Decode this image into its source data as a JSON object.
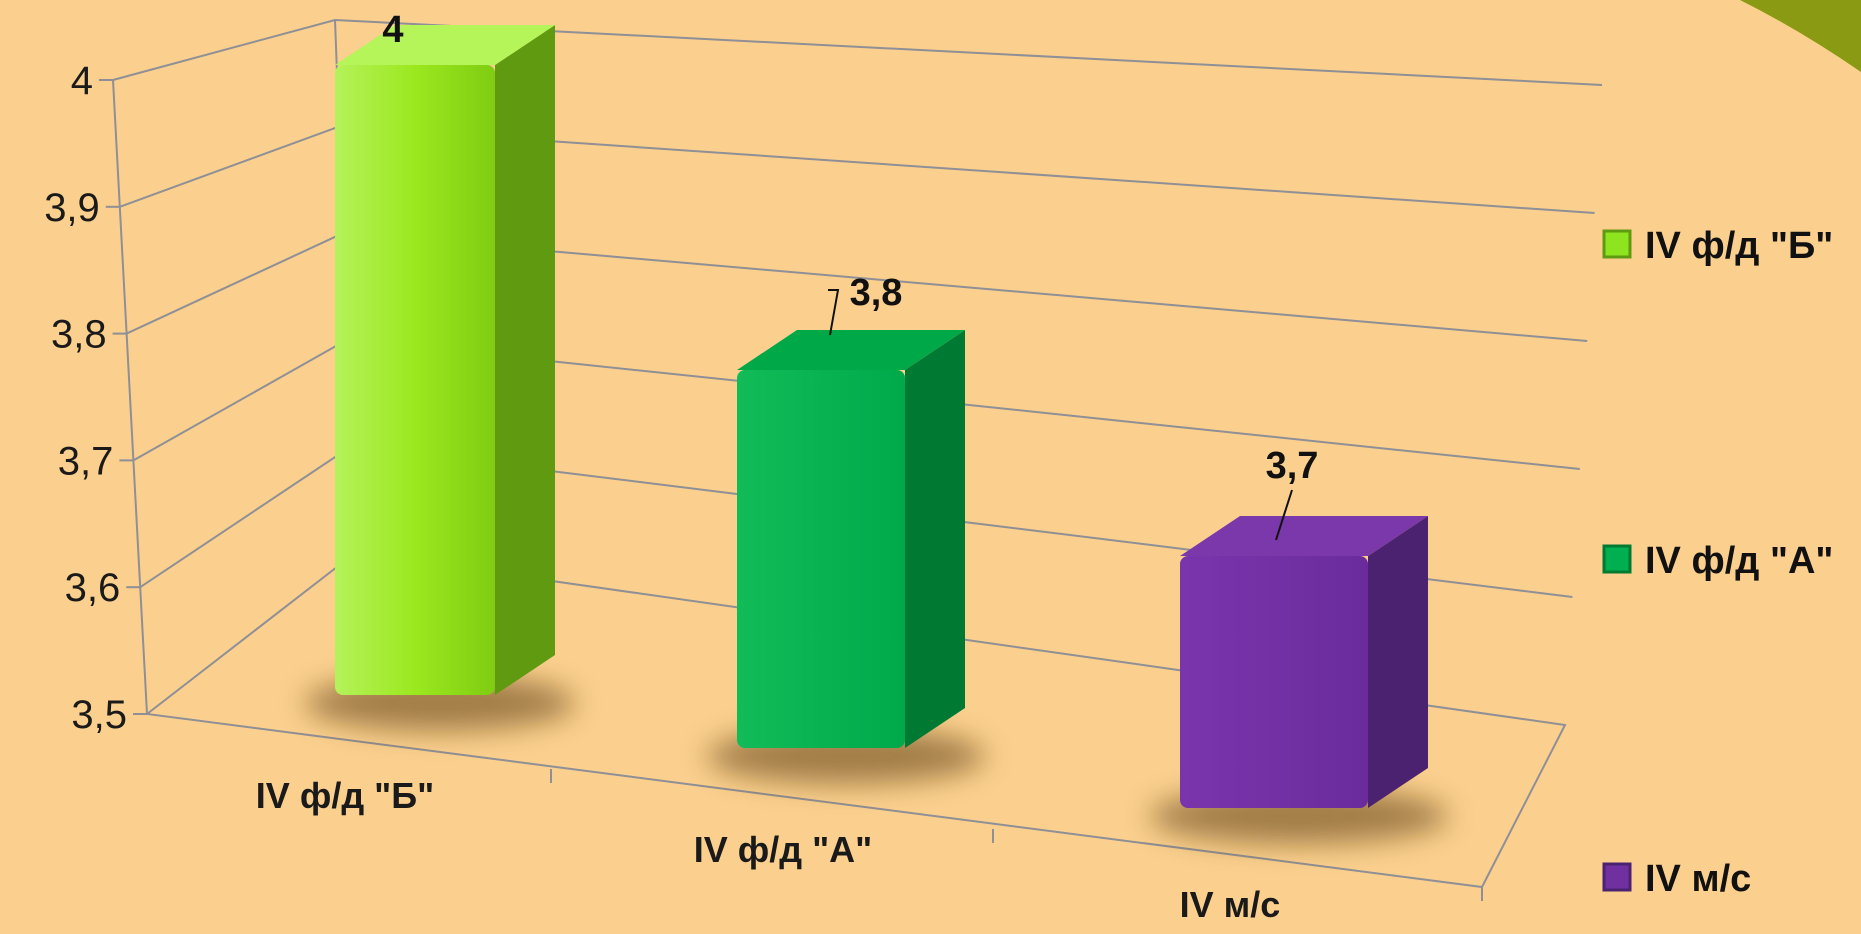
{
  "chart_data": {
    "type": "bar",
    "title": "",
    "xlabel": "",
    "ylabel": "",
    "categories": [
      "IV ф/д \"Б\"",
      "IV ф/д \"А\"",
      "IV м/с"
    ],
    "values": [
      4,
      3.8,
      3.7
    ],
    "data_labels": [
      "4",
      "3,8",
      "3,7"
    ],
    "ylim": [
      3.5,
      4.0
    ],
    "yticks": [
      3.5,
      3.6,
      3.7,
      3.8,
      3.9,
      4.0
    ],
    "ytick_labels": [
      "3,5",
      "3,6",
      "3,7",
      "3,8",
      "3,9",
      "4"
    ],
    "grid": true,
    "three_d": true,
    "legend": {
      "position": "right",
      "entries": [
        "IV ф/д \"Б\"",
        "IV ф/д \"А\"",
        "IV м/с"
      ]
    },
    "colors": {
      "background": "#FBD08E",
      "series": [
        "#8EE41F",
        "#00B050",
        "#7030A0"
      ]
    }
  }
}
